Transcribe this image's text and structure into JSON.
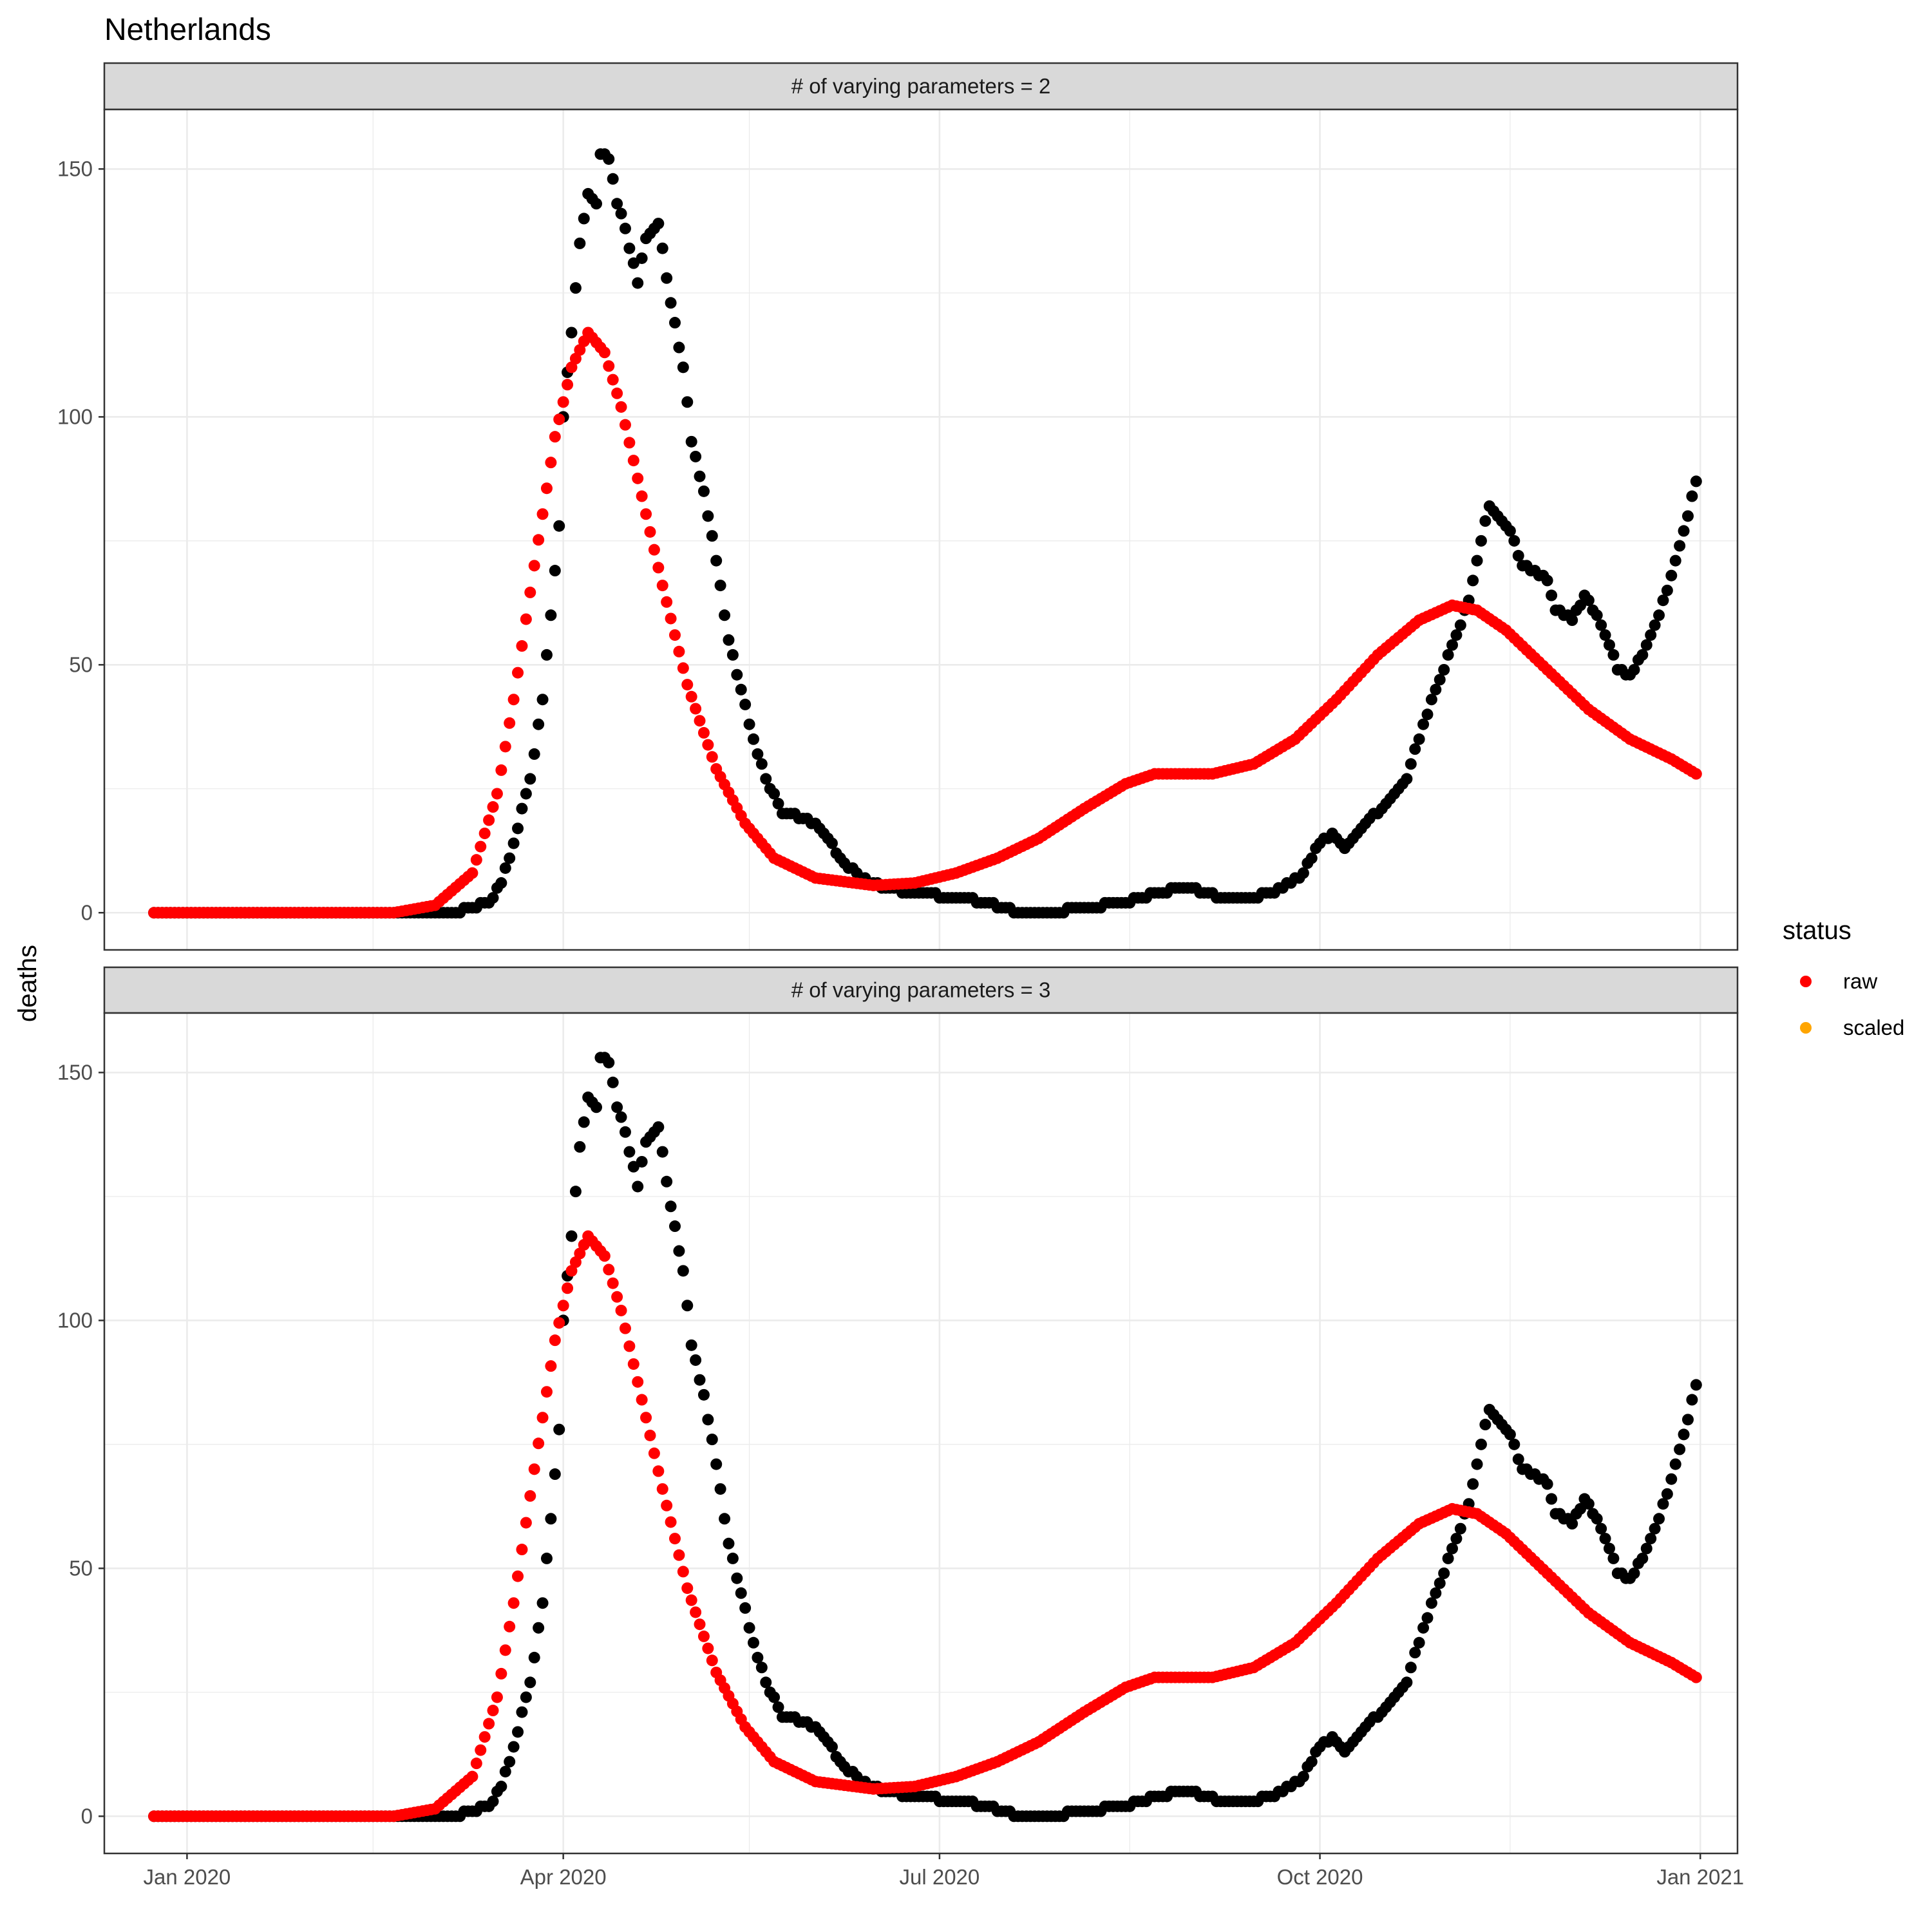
{
  "title": "Netherlands",
  "ylabel": "deaths",
  "legend": {
    "title": "status",
    "items": [
      {
        "label": "raw",
        "color": "#ff0000"
      },
      {
        "label": "scaled",
        "color": "#ffa500"
      }
    ]
  },
  "colors": {
    "observed": "#000000",
    "raw": "#ff0000",
    "grid": "#ebebeb",
    "strip_bg": "#d9d9d9",
    "border": "#333333"
  },
  "chart_data": {
    "type": "scatter",
    "facets": [
      {
        "strip": "# of varying parameters = 2"
      },
      {
        "strip": "# of varying parameters = 3"
      }
    ],
    "x_ticks": [
      "Jan 2020",
      "Apr 2020",
      "Jul 2020",
      "Oct 2020",
      "Jan 2021"
    ],
    "y_ticks": [
      0,
      50,
      100,
      150
    ],
    "xlim": [
      "2019-12-12",
      "2021-01-10"
    ],
    "ylim": [
      -7.5,
      162
    ],
    "grid": true,
    "legend_position": "right",
    "x_start": "2019-12-24",
    "x_end": "2020-12-31",
    "series": [
      {
        "name": "raw",
        "color": "#ff0000",
        "anchors": [
          [
            "2019-12-24",
            0
          ],
          [
            "2020-02-20",
            0
          ],
          [
            "2020-03-01",
            1.5
          ],
          [
            "2020-03-10",
            8
          ],
          [
            "2020-03-16",
            24
          ],
          [
            "2020-03-20",
            43
          ],
          [
            "2020-03-25",
            70
          ],
          [
            "2020-03-30",
            96
          ],
          [
            "2020-04-03",
            110
          ],
          [
            "2020-04-07",
            117
          ],
          [
            "2020-04-11",
            113
          ],
          [
            "2020-04-15",
            102
          ],
          [
            "2020-04-20",
            84
          ],
          [
            "2020-04-25",
            66
          ],
          [
            "2020-05-01",
            46
          ],
          [
            "2020-05-08",
            29
          ],
          [
            "2020-05-15",
            18
          ],
          [
            "2020-05-22",
            11
          ],
          [
            "2020-06-01",
            7
          ],
          [
            "2020-06-15",
            5.5
          ],
          [
            "2020-06-25",
            6
          ],
          [
            "2020-07-05",
            8
          ],
          [
            "2020-07-15",
            11
          ],
          [
            "2020-07-25",
            15
          ],
          [
            "2020-08-05",
            21
          ],
          [
            "2020-08-15",
            26
          ],
          [
            "2020-08-22",
            28
          ],
          [
            "2020-09-05",
            28
          ],
          [
            "2020-09-15",
            30
          ],
          [
            "2020-09-25",
            35
          ],
          [
            "2020-10-05",
            43
          ],
          [
            "2020-10-15",
            52
          ],
          [
            "2020-10-25",
            59
          ],
          [
            "2020-11-02",
            62
          ],
          [
            "2020-11-08",
            61
          ],
          [
            "2020-11-15",
            57
          ],
          [
            "2020-11-25",
            49
          ],
          [
            "2020-12-05",
            41
          ],
          [
            "2020-12-15",
            35
          ],
          [
            "2020-12-25",
            31
          ],
          [
            "2020-12-31",
            28
          ]
        ]
      },
      {
        "name": "",
        "color": "#000000",
        "anchors": [
          [
            "2019-12-24",
            0
          ],
          [
            "2020-03-06",
            0
          ],
          [
            "2020-03-09",
            1
          ],
          [
            "2020-03-14",
            2
          ],
          [
            "2020-03-17",
            6
          ],
          [
            "2020-03-20",
            14
          ],
          [
            "2020-03-24",
            27
          ],
          [
            "2020-03-27",
            43
          ],
          [
            "2020-03-29",
            60
          ],
          [
            "2020-03-31",
            78
          ],
          [
            "2020-04-01",
            100
          ],
          [
            "2020-04-03",
            117
          ],
          [
            "2020-04-05",
            135
          ],
          [
            "2020-04-07",
            145
          ],
          [
            "2020-04-09",
            143
          ],
          [
            "2020-04-10",
            153
          ],
          [
            "2020-04-12",
            152
          ],
          [
            "2020-04-14",
            143
          ],
          [
            "2020-04-16",
            138
          ],
          [
            "2020-04-19",
            127
          ],
          [
            "2020-04-21",
            136
          ],
          [
            "2020-04-24",
            139
          ],
          [
            "2020-04-27",
            123
          ],
          [
            "2020-04-30",
            110
          ],
          [
            "2020-05-02",
            95
          ],
          [
            "2020-05-05",
            85
          ],
          [
            "2020-05-08",
            71
          ],
          [
            "2020-05-11",
            55
          ],
          [
            "2020-05-14",
            45
          ],
          [
            "2020-05-17",
            35
          ],
          [
            "2020-05-20",
            27
          ],
          [
            "2020-05-24",
            20
          ],
          [
            "2020-05-30",
            19
          ],
          [
            "2020-06-03",
            16
          ],
          [
            "2020-06-07",
            11
          ],
          [
            "2020-06-12",
            7
          ],
          [
            "2020-06-18",
            5
          ],
          [
            "2020-06-25",
            4
          ],
          [
            "2020-07-05",
            3
          ],
          [
            "2020-07-13",
            2
          ],
          [
            "2020-07-20",
            0
          ],
          [
            "2020-07-28",
            0
          ],
          [
            "2020-08-05",
            1
          ],
          [
            "2020-08-15",
            2
          ],
          [
            "2020-08-22",
            4
          ],
          [
            "2020-08-30",
            5
          ],
          [
            "2020-09-08",
            3
          ],
          [
            "2020-09-15",
            3
          ],
          [
            "2020-09-22",
            5
          ],
          [
            "2020-09-27",
            8
          ],
          [
            "2020-09-30",
            13
          ],
          [
            "2020-10-04",
            16
          ],
          [
            "2020-10-07",
            13
          ],
          [
            "2020-10-11",
            17
          ],
          [
            "2020-10-17",
            22
          ],
          [
            "2020-10-22",
            27
          ],
          [
            "2020-10-26",
            38
          ],
          [
            "2020-10-30",
            47
          ],
          [
            "2020-11-03",
            56
          ],
          [
            "2020-11-06",
            63
          ],
          [
            "2020-11-09",
            75
          ],
          [
            "2020-11-11",
            82
          ],
          [
            "2020-11-13",
            80
          ],
          [
            "2020-11-16",
            77
          ],
          [
            "2020-11-19",
            70
          ],
          [
            "2020-11-22",
            69
          ],
          [
            "2020-11-25",
            67
          ],
          [
            "2020-11-27",
            61
          ],
          [
            "2020-12-01",
            59
          ],
          [
            "2020-12-04",
            64
          ],
          [
            "2020-12-07",
            60
          ],
          [
            "2020-12-10",
            54
          ],
          [
            "2020-12-12",
            49
          ],
          [
            "2020-12-15",
            48
          ],
          [
            "2020-12-18",
            52
          ],
          [
            "2020-12-21",
            58
          ],
          [
            "2020-12-24",
            65
          ],
          [
            "2020-12-27",
            74
          ],
          [
            "2020-12-29",
            80
          ],
          [
            "2020-12-31",
            87
          ]
        ]
      }
    ]
  }
}
